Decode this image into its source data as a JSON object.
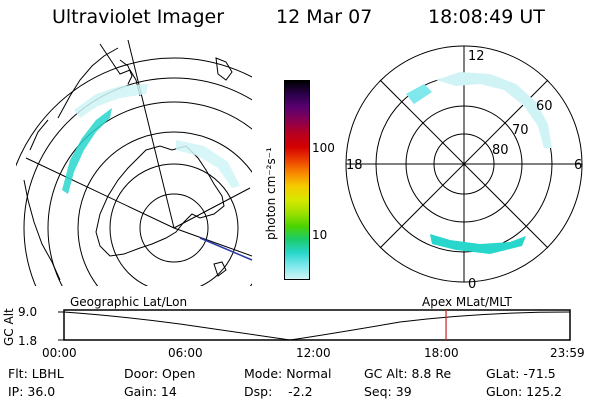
{
  "header": {
    "title": "Ultraviolet Imager",
    "date": "12 Mar 07",
    "time": "18:08:49 UT"
  },
  "geo_panel": {
    "label": "Geographic Lat/Lon"
  },
  "colorbar": {
    "unit_label": "photon cm⁻²s⁻¹",
    "ticks": [
      "100",
      "10"
    ],
    "colors": [
      "#000000",
      "#2a004a",
      "#5a0070",
      "#8a0050",
      "#b80020",
      "#d40000",
      "#ec4000",
      "#f88a00",
      "#f4cc00",
      "#d8e800",
      "#9ee000",
      "#4cd400",
      "#1ccc6c",
      "#28d6cc",
      "#7ee8ec",
      "#d0f4f6"
    ]
  },
  "polar_panel": {
    "label": "Apex MLat/MLT",
    "mlt_labels": {
      "top": "12",
      "left": "18",
      "right": "6",
      "bottom": "0"
    },
    "lat_labels": [
      "60",
      "70",
      "80"
    ]
  },
  "timeline": {
    "y_axis_label": "GC Alt",
    "y_ticks": [
      "9.0",
      "1.8"
    ],
    "x_ticks": [
      "00:00",
      "06:00",
      "12:00",
      "18:00",
      "23:59"
    ],
    "current_time_fraction": 0.755,
    "marker_color": "#cc2222"
  },
  "footer": {
    "row1": {
      "flt": "Flt: LBHL",
      "door": "Door: Open",
      "mode": "Mode: Normal",
      "gcalt": "GC Alt: 8.8 Re",
      "glat": "GLat: -71.5"
    },
    "row2": {
      "ip": "IP: 36.0",
      "gain": "Gain: 14",
      "dsp": "Dsp:    -2.2",
      "seq": "Seq: 39",
      "glon": "GLon: 125.2"
    }
  }
}
